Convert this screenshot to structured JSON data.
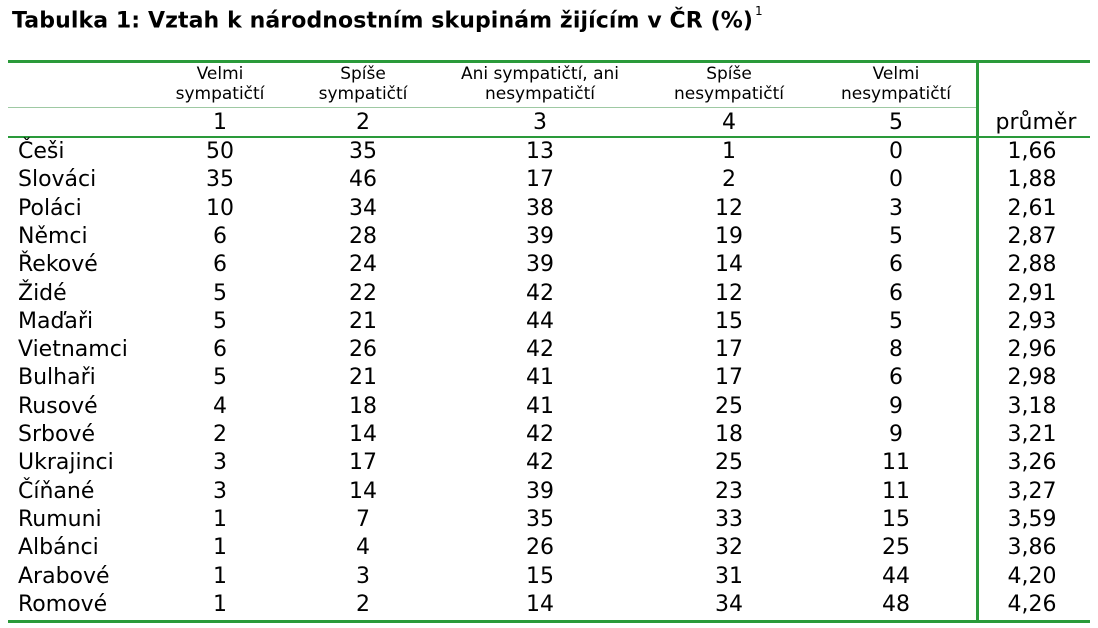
{
  "title": "Tabulka 1: Vztah k národnostním skupinám žijícím v ČR (%)",
  "title_footnote": "1",
  "columns": [
    {
      "label_line1": "Velmi",
      "label_line2": "sympatičtí",
      "number": "1"
    },
    {
      "label_line1": "Spíše",
      "label_line2": "sympatičtí",
      "number": "2"
    },
    {
      "label_line1": "Ani sympatičtí, ani",
      "label_line2": "nesympatičtí",
      "number": "3"
    },
    {
      "label_line1": "Spíše",
      "label_line2": "nesympatičtí",
      "number": "4"
    },
    {
      "label_line1": "Velmi",
      "label_line2": "nesympatičtí",
      "number": "5"
    }
  ],
  "average_label": "průměr",
  "rows": [
    {
      "group": "Češi",
      "values": [
        "50",
        "35",
        "13",
        "1",
        "0"
      ],
      "average": "1,66"
    },
    {
      "group": "Slováci",
      "values": [
        "35",
        "46",
        "17",
        "2",
        "0"
      ],
      "average": "1,88"
    },
    {
      "group": "Poláci",
      "values": [
        "10",
        "34",
        "38",
        "12",
        "3"
      ],
      "average": "2,61"
    },
    {
      "group": "Němci",
      "values": [
        "6",
        "28",
        "39",
        "19",
        "5"
      ],
      "average": "2,87"
    },
    {
      "group": "Řekové",
      "values": [
        "6",
        "24",
        "39",
        "14",
        "6"
      ],
      "average": "2,88"
    },
    {
      "group": "Židé",
      "values": [
        "5",
        "22",
        "42",
        "12",
        "6"
      ],
      "average": "2,91"
    },
    {
      "group": "Maďaři",
      "values": [
        "5",
        "21",
        "44",
        "15",
        "5"
      ],
      "average": "2,93"
    },
    {
      "group": "Vietnamci",
      "values": [
        "6",
        "26",
        "42",
        "17",
        "8"
      ],
      "average": "2,96"
    },
    {
      "group": "Bulhaři",
      "values": [
        "5",
        "21",
        "41",
        "17",
        "6"
      ],
      "average": "2,98"
    },
    {
      "group": "Rusové",
      "values": [
        "4",
        "18",
        "41",
        "25",
        "9"
      ],
      "average": "3,18"
    },
    {
      "group": "Srbové",
      "values": [
        "2",
        "14",
        "42",
        "18",
        "9"
      ],
      "average": "3,21"
    },
    {
      "group": "Ukrajinci",
      "values": [
        "3",
        "17",
        "42",
        "25",
        "11"
      ],
      "average": "3,26"
    },
    {
      "group": "Číňané",
      "values": [
        "3",
        "14",
        "39",
        "23",
        "11"
      ],
      "average": "3,27"
    },
    {
      "group": "Rumuni",
      "values": [
        "1",
        "7",
        "35",
        "33",
        "15"
      ],
      "average": "3,59"
    },
    {
      "group": "Albánci",
      "values": [
        "1",
        "4",
        "26",
        "32",
        "25"
      ],
      "average": "3,86"
    },
    {
      "group": "Arabové",
      "values": [
        "1",
        "3",
        "15",
        "31",
        "44"
      ],
      "average": "4,20"
    },
    {
      "group": "Romové",
      "values": [
        "1",
        "2",
        "14",
        "34",
        "48"
      ],
      "average": "4,26"
    }
  ],
  "colors": {
    "rule": "#2a9a3a"
  }
}
